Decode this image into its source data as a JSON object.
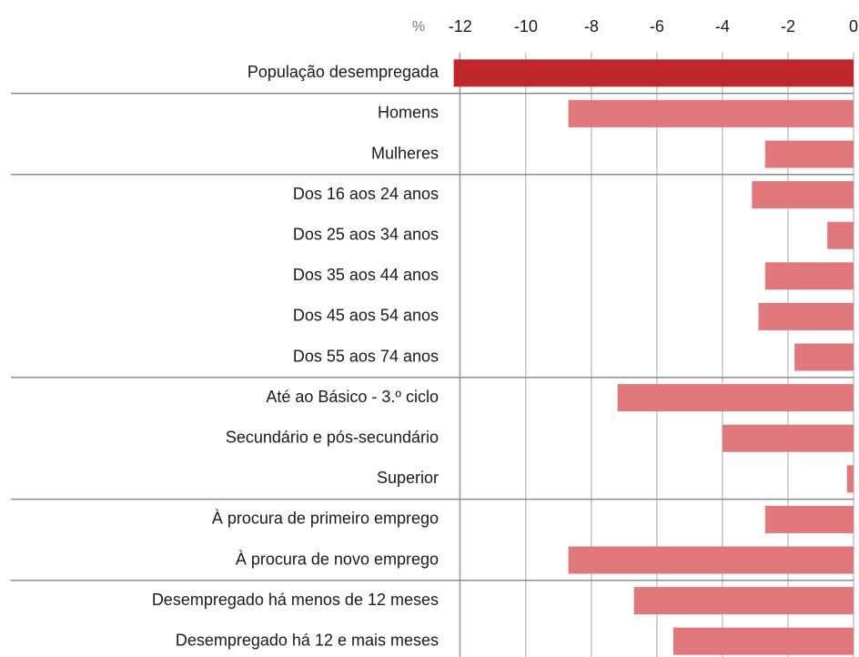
{
  "chart_data": {
    "type": "hbar",
    "x_label": "%",
    "categories": [
      "População desempregada",
      "Homens",
      "Mulheres",
      "Dos 16 aos 24 anos",
      "Dos 25 aos 34 anos",
      "Dos 35 aos 44 anos",
      "Dos 45 aos 54 anos",
      "Dos 55 aos 74 anos",
      "Até ao Básico - 3.º ciclo",
      "Secundário e pós-secundário",
      "Superior",
      "À procura de primeiro emprego",
      "À procura de novo emprego",
      "Desempregado há menos de 12 meses",
      "Desempregado há 12 e mais meses"
    ],
    "values": [
      -12.2,
      -8.7,
      -2.7,
      -3.1,
      -0.8,
      -2.7,
      -2.9,
      -1.8,
      -7.2,
      -4.0,
      -0.2,
      -2.7,
      -8.7,
      -6.7,
      -5.5
    ],
    "colors": [
      "#c0272d",
      "#e0787c",
      "#e0787c",
      "#e0787c",
      "#e0787c",
      "#e0787c",
      "#e0787c",
      "#e0787c",
      "#e0787c",
      "#e0787c",
      "#e0787c",
      "#e0787c",
      "#e0787c",
      "#e0787c",
      "#e0787c"
    ],
    "xlim": [
      -12.3,
      0
    ],
    "xticks": [
      -12,
      -10,
      -8,
      -6,
      -4,
      -2,
      0
    ],
    "grid": true
  }
}
